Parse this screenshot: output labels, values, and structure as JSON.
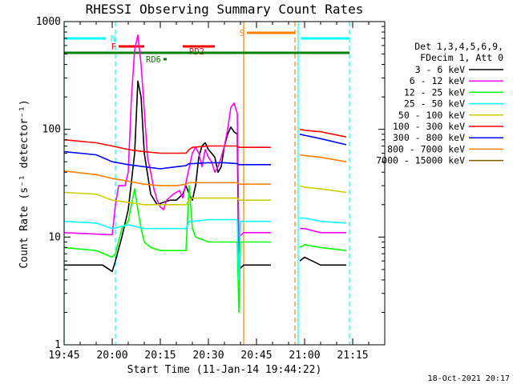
{
  "chart_data": {
    "type": "line",
    "title": "RHESSI Observing Summary Count Rates",
    "xlabel": "Start Time (11-Jan-14 19:44:22)",
    "ylabel": "Count Rate (s⁻¹ detector⁻¹)",
    "yscale": "log",
    "ylim": [
      1,
      1000
    ],
    "xlim_minutes": [
      0,
      100
    ],
    "x_ticks": [
      {
        "label": "19:45",
        "minutes": 0
      },
      {
        "label": "20:00",
        "minutes": 15
      },
      {
        "label": "20:15",
        "minutes": 30
      },
      {
        "label": "20:30",
        "minutes": 45
      },
      {
        "label": "20:45",
        "minutes": 60
      },
      {
        "label": "21:00",
        "minutes": 75
      },
      {
        "label": "21:15",
        "minutes": 90
      }
    ],
    "y_ticks": [
      {
        "label": "1",
        "value": 1
      },
      {
        "label": "10",
        "value": 10
      },
      {
        "label": "100",
        "value": 100
      },
      {
        "label": "1000",
        "value": 1000
      }
    ],
    "legend_header": [
      "Det 1,3,4,5,6,9,",
      "FDecim 1, Att 0"
    ],
    "series": [
      {
        "name": "3 - 6 keV",
        "color": "#000000",
        "points": [
          [
            0,
            5.5
          ],
          [
            12,
            5.5
          ],
          [
            15,
            4.8
          ],
          [
            16,
            6
          ],
          [
            18,
            10
          ],
          [
            20,
            18
          ],
          [
            22,
            60
          ],
          [
            23,
            280
          ],
          [
            24,
            200
          ],
          [
            25,
            60
          ],
          [
            27,
            25
          ],
          [
            29,
            20
          ],
          [
            31,
            21
          ],
          [
            33,
            22
          ],
          [
            35,
            22
          ],
          [
            37,
            25
          ],
          [
            38,
            30
          ],
          [
            39,
            25
          ],
          [
            40,
            22
          ],
          [
            41,
            30
          ],
          [
            42,
            55
          ],
          [
            43,
            70
          ],
          [
            44,
            75
          ],
          [
            45,
            65
          ],
          [
            46,
            60
          ],
          [
            47,
            55
          ],
          [
            48,
            40
          ],
          [
            49,
            45
          ],
          [
            50,
            70
          ],
          [
            51,
            90
          ],
          [
            52,
            105
          ],
          [
            53,
            95
          ],
          [
            54,
            90
          ],
          [
            54.5,
            5
          ],
          [
            56,
            5.5
          ],
          [
            64.5,
            5.5
          ],
          [
            65,
            0
          ],
          [
            73,
            0
          ],
          [
            73.5,
            6
          ],
          [
            75,
            6.5
          ],
          [
            80,
            5.5
          ],
          [
            88,
            5.5
          ]
        ]
      },
      {
        "name": "6 - 12 keV",
        "color": "#ff00ff",
        "points": [
          [
            0,
            11
          ],
          [
            15,
            10.5
          ],
          [
            16,
            20
          ],
          [
            17,
            30
          ],
          [
            19,
            30
          ],
          [
            20,
            40
          ],
          [
            21,
            200
          ],
          [
            22,
            550
          ],
          [
            23,
            750
          ],
          [
            24,
            400
          ],
          [
            25,
            150
          ],
          [
            26,
            55
          ],
          [
            27,
            40
          ],
          [
            28,
            28
          ],
          [
            29,
            22
          ],
          [
            30,
            19
          ],
          [
            31,
            18
          ],
          [
            32,
            22
          ],
          [
            34,
            25
          ],
          [
            36,
            27
          ],
          [
            37,
            23
          ],
          [
            38,
            32
          ],
          [
            40,
            60
          ],
          [
            41,
            68
          ],
          [
            42,
            60
          ],
          [
            43,
            45
          ],
          [
            44,
            65
          ],
          [
            45,
            55
          ],
          [
            46,
            50
          ],
          [
            47,
            40
          ],
          [
            48,
            45
          ],
          [
            49,
            55
          ],
          [
            50,
            70
          ],
          [
            51,
            100
          ],
          [
            52,
            160
          ],
          [
            53,
            175
          ],
          [
            54,
            140
          ],
          [
            54.5,
            10
          ],
          [
            56,
            11
          ],
          [
            64.5,
            11
          ],
          [
            65,
            0
          ],
          [
            73,
            0
          ],
          [
            73.5,
            12
          ],
          [
            75,
            12
          ],
          [
            80,
            11
          ],
          [
            88,
            11
          ]
        ]
      },
      {
        "name": "12 - 25 keV",
        "color": "#00ff00",
        "points": [
          [
            0,
            8
          ],
          [
            10,
            7.5
          ],
          [
            15,
            6.5
          ],
          [
            16,
            7
          ],
          [
            18,
            12
          ],
          [
            20,
            14
          ],
          [
            21,
            20
          ],
          [
            22,
            28
          ],
          [
            23,
            18
          ],
          [
            24,
            12
          ],
          [
            25,
            9
          ],
          [
            27,
            8
          ],
          [
            30,
            7.5
          ],
          [
            35,
            7.5
          ],
          [
            38,
            7.5
          ],
          [
            39,
            30
          ],
          [
            40,
            12
          ],
          [
            41,
            10
          ],
          [
            45,
            9
          ],
          [
            50,
            9
          ],
          [
            54,
            9
          ],
          [
            54.5,
            2
          ],
          [
            55,
            9
          ],
          [
            58,
            9
          ],
          [
            64.5,
            9
          ],
          [
            65,
            0
          ],
          [
            73,
            0
          ],
          [
            73.5,
            8
          ],
          [
            75,
            8.5
          ],
          [
            80,
            8
          ],
          [
            88,
            7.5
          ]
        ]
      },
      {
        "name": "25 - 50 keV",
        "color": "#00ffff",
        "points": [
          [
            0,
            14
          ],
          [
            10,
            13.5
          ],
          [
            15,
            12
          ],
          [
            20,
            13
          ],
          [
            25,
            12
          ],
          [
            30,
            12
          ],
          [
            35,
            12
          ],
          [
            38,
            12
          ],
          [
            39,
            14
          ],
          [
            40,
            14
          ],
          [
            45,
            14.5
          ],
          [
            50,
            14.5
          ],
          [
            54,
            14.5
          ],
          [
            54.5,
            4
          ],
          [
            55,
            14
          ],
          [
            60,
            14
          ],
          [
            64.5,
            14
          ],
          [
            65,
            0
          ],
          [
            73,
            0
          ],
          [
            73.5,
            15
          ],
          [
            75,
            15
          ],
          [
            80,
            14
          ],
          [
            88,
            13.5
          ]
        ]
      },
      {
        "name": "50 - 100 keV",
        "color": "#cccc00",
        "points": [
          [
            0,
            26
          ],
          [
            10,
            25
          ],
          [
            15,
            22
          ],
          [
            20,
            21
          ],
          [
            25,
            20
          ],
          [
            30,
            20
          ],
          [
            35,
            20
          ],
          [
            38,
            20
          ],
          [
            39,
            22
          ],
          [
            40,
            23
          ],
          [
            45,
            23
          ],
          [
            50,
            23
          ],
          [
            54,
            23
          ],
          [
            54.5,
            22
          ],
          [
            60,
            22
          ],
          [
            64.5,
            22
          ],
          [
            65,
            0
          ],
          [
            73,
            0
          ],
          [
            73.5,
            30
          ],
          [
            75,
            29
          ],
          [
            80,
            28
          ],
          [
            88,
            26
          ]
        ]
      },
      {
        "name": "100 - 300 keV",
        "color": "#ff0000",
        "points": [
          [
            0,
            80
          ],
          [
            10,
            75
          ],
          [
            15,
            70
          ],
          [
            20,
            65
          ],
          [
            25,
            62
          ],
          [
            30,
            60
          ],
          [
            35,
            60
          ],
          [
            38,
            60
          ],
          [
            39,
            65
          ],
          [
            40,
            68
          ],
          [
            45,
            70
          ],
          [
            50,
            70
          ],
          [
            54,
            70
          ],
          [
            54.5,
            68
          ],
          [
            60,
            68
          ],
          [
            64.5,
            68
          ],
          [
            65,
            0
          ],
          [
            73,
            0
          ],
          [
            73.5,
            100
          ],
          [
            75,
            98
          ],
          [
            80,
            95
          ],
          [
            88,
            85
          ]
        ]
      },
      {
        "name": "300 - 800 keV",
        "color": "#0000ff",
        "points": [
          [
            0,
            62
          ],
          [
            10,
            58
          ],
          [
            15,
            50
          ],
          [
            20,
            47
          ],
          [
            25,
            45
          ],
          [
            30,
            43
          ],
          [
            35,
            45
          ],
          [
            38,
            46
          ],
          [
            39,
            48
          ],
          [
            40,
            48
          ],
          [
            45,
            49
          ],
          [
            50,
            49
          ],
          [
            54,
            48
          ],
          [
            54.5,
            47
          ],
          [
            60,
            47
          ],
          [
            64.5,
            47
          ],
          [
            65,
            0
          ],
          [
            73,
            0
          ],
          [
            73.5,
            90
          ],
          [
            75,
            88
          ],
          [
            80,
            82
          ],
          [
            88,
            72
          ]
        ]
      },
      {
        "name": "800 - 7000 keV",
        "color": "#ff7f00",
        "points": [
          [
            0,
            41
          ],
          [
            10,
            38
          ],
          [
            15,
            35
          ],
          [
            20,
            33
          ],
          [
            25,
            31
          ],
          [
            30,
            30
          ],
          [
            35,
            30
          ],
          [
            38,
            31
          ],
          [
            39,
            32
          ],
          [
            40,
            32
          ],
          [
            45,
            32
          ],
          [
            50,
            32
          ],
          [
            54,
            32
          ],
          [
            54.5,
            31
          ],
          [
            60,
            31
          ],
          [
            64.5,
            31
          ],
          [
            65,
            0
          ],
          [
            73,
            0
          ],
          [
            73.5,
            58
          ],
          [
            75,
            57
          ],
          [
            80,
            55
          ],
          [
            88,
            50
          ]
        ]
      },
      {
        "name": "7000 - 15000 keV",
        "color": "#7f5f00",
        "points": []
      }
    ],
    "flag_bars": [
      {
        "label": "N",
        "color": "#00ffff",
        "segments": [
          [
            0,
            13
          ],
          [
            74,
            89
          ]
        ]
      },
      {
        "label": "S",
        "color": "#ff7f00",
        "segments": [
          [
            57,
            72
          ]
        ]
      },
      {
        "label": "F",
        "color": "#ff0000",
        "segments": [
          [
            17,
            25
          ]
        ]
      },
      {
        "label": "RD2",
        "color": "#ff0000",
        "segments": [
          [
            37,
            47
          ]
        ]
      },
      {
        "label": "RD6",
        "color": "#008000",
        "segments": [
          [
            31,
            32
          ]
        ]
      },
      {
        "label": "",
        "color": "#008000",
        "segments": [
          [
            0,
            89
          ]
        ]
      }
    ],
    "vertical_markers": [
      {
        "minutes": 0,
        "color": "#00ffff",
        "style": "solid"
      },
      {
        "minutes": 16,
        "color": "#00ffff",
        "style": "dashed"
      },
      {
        "minutes": 56,
        "color": "#ff7f00",
        "style": "solid"
      },
      {
        "minutes": 72,
        "color": "#ff7f00",
        "style": "dashed"
      },
      {
        "minutes": 73,
        "color": "#00ffff",
        "style": "solid"
      },
      {
        "minutes": 89,
        "color": "#00ffff",
        "style": "dashed"
      }
    ],
    "footer_date": "18-Oct-2021 20:17"
  }
}
